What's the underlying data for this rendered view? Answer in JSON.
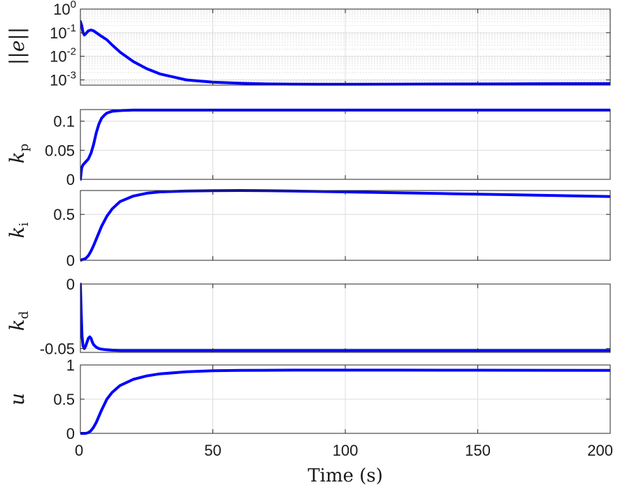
{
  "chart_data": [
    {
      "type": "line",
      "ylabel": "||e||",
      "yscale": "log",
      "ylim": [
        0.0006,
        1
      ],
      "yticks": [
        {
          "value": 1,
          "base": "10",
          "exp": "0"
        },
        {
          "value": 0.1,
          "base": "10",
          "exp": "-1"
        },
        {
          "value": 0.01,
          "base": "10",
          "exp": "-2"
        },
        {
          "value": 0.001,
          "base": "10",
          "exp": "-3"
        }
      ],
      "grid": true,
      "minor_grid": true,
      "color": "#0000ff",
      "x": [
        0,
        0.5,
        1,
        1.5,
        2,
        3,
        4,
        5,
        6,
        8,
        10,
        12,
        15,
        20,
        25,
        30,
        40,
        50,
        60,
        70,
        80,
        90,
        100,
        120,
        140,
        160,
        180,
        200
      ],
      "y": [
        0.3,
        0.2,
        0.1,
        0.08,
        0.09,
        0.12,
        0.13,
        0.12,
        0.1,
        0.07,
        0.05,
        0.03,
        0.015,
        0.006,
        0.003,
        0.0018,
        0.001,
        0.0008,
        0.00072,
        0.00068,
        0.00066,
        0.00065,
        0.00065,
        0.00066,
        0.00067,
        0.00068,
        0.00069,
        0.0007
      ]
    },
    {
      "type": "line",
      "ylabel_main": "k",
      "ylabel_sub": "p",
      "ylim": [
        0,
        0.12
      ],
      "yticks": [
        {
          "value": 0,
          "label": "0"
        },
        {
          "value": 0.05,
          "label": "0.05"
        },
        {
          "value": 0.1,
          "label": "0.1"
        }
      ],
      "grid": true,
      "color": "#0000ff",
      "x": [
        0,
        0.5,
        1,
        2,
        3,
        4,
        5,
        6,
        7,
        8,
        9,
        10,
        12,
        14,
        16,
        20,
        30,
        50,
        100,
        150,
        200
      ],
      "y": [
        0,
        0.02,
        0.025,
        0.03,
        0.035,
        0.045,
        0.06,
        0.08,
        0.095,
        0.105,
        0.11,
        0.114,
        0.117,
        0.118,
        0.1185,
        0.119,
        0.119,
        0.119,
        0.119,
        0.119,
        0.119
      ]
    },
    {
      "type": "line",
      "ylabel_main": "k",
      "ylabel_sub": "i",
      "ylim": [
        0,
        0.76
      ],
      "yticks": [
        {
          "value": 0,
          "label": "0"
        },
        {
          "value": 0.5,
          "label": "0.5"
        }
      ],
      "grid": true,
      "color": "#0000ff",
      "x": [
        0,
        1,
        2,
        3,
        4,
        5,
        6,
        8,
        10,
        12,
        15,
        20,
        25,
        30,
        40,
        50,
        60,
        70,
        80,
        100,
        120,
        140,
        160,
        180,
        200
      ],
      "y": [
        0,
        0.01,
        0.02,
        0.05,
        0.1,
        0.16,
        0.23,
        0.37,
        0.48,
        0.56,
        0.64,
        0.7,
        0.73,
        0.745,
        0.755,
        0.758,
        0.76,
        0.758,
        0.755,
        0.745,
        0.735,
        0.725,
        0.715,
        0.705,
        0.695
      ]
    },
    {
      "type": "line",
      "ylabel_main": "k",
      "ylabel_sub": "d",
      "ylim": [
        -0.053,
        0
      ],
      "yticks": [
        {
          "value": 0,
          "label": "0"
        },
        {
          "value": -0.05,
          "label": "-0.05"
        }
      ],
      "grid": true,
      "color": "#0000ff",
      "x": [
        0,
        0.3,
        0.6,
        1,
        1.5,
        2,
        2.5,
        3,
        3.5,
        4,
        4.5,
        5,
        6,
        7,
        8,
        10,
        12,
        15,
        20,
        50,
        100,
        150,
        200
      ],
      "y": [
        0,
        -0.02,
        -0.04,
        -0.048,
        -0.05,
        -0.048,
        -0.045,
        -0.042,
        -0.041,
        -0.042,
        -0.045,
        -0.047,
        -0.049,
        -0.05,
        -0.0505,
        -0.051,
        -0.0513,
        -0.0515,
        -0.0515,
        -0.0515,
        -0.0515,
        -0.0515,
        -0.0515
      ]
    },
    {
      "type": "line",
      "ylabel_main": "u",
      "ylabel_sub": "",
      "ylim": [
        0,
        1
      ],
      "yticks": [
        {
          "value": 0,
          "label": "0"
        },
        {
          "value": 0.5,
          "label": "0.5"
        },
        {
          "value": 1,
          "label": "1"
        }
      ],
      "grid": true,
      "color": "#0000ff",
      "x": [
        0,
        1,
        2,
        3,
        4,
        5,
        6,
        8,
        10,
        12,
        15,
        20,
        25,
        30,
        40,
        50,
        60,
        80,
        100,
        120,
        150,
        200
      ],
      "y": [
        0,
        0,
        0,
        0.01,
        0.04,
        0.09,
        0.16,
        0.34,
        0.5,
        0.6,
        0.7,
        0.79,
        0.84,
        0.87,
        0.9,
        0.915,
        0.92,
        0.925,
        0.925,
        0.925,
        0.923,
        0.92
      ]
    }
  ],
  "shared_x": {
    "xlim": [
      0,
      200
    ],
    "ticks": [
      {
        "value": 0,
        "label": "0"
      },
      {
        "value": 50,
        "label": "50"
      },
      {
        "value": 100,
        "label": "100"
      },
      {
        "value": 150,
        "label": "150"
      },
      {
        "value": 200,
        "label": "200"
      }
    ],
    "xlabel": "Time (s)"
  }
}
